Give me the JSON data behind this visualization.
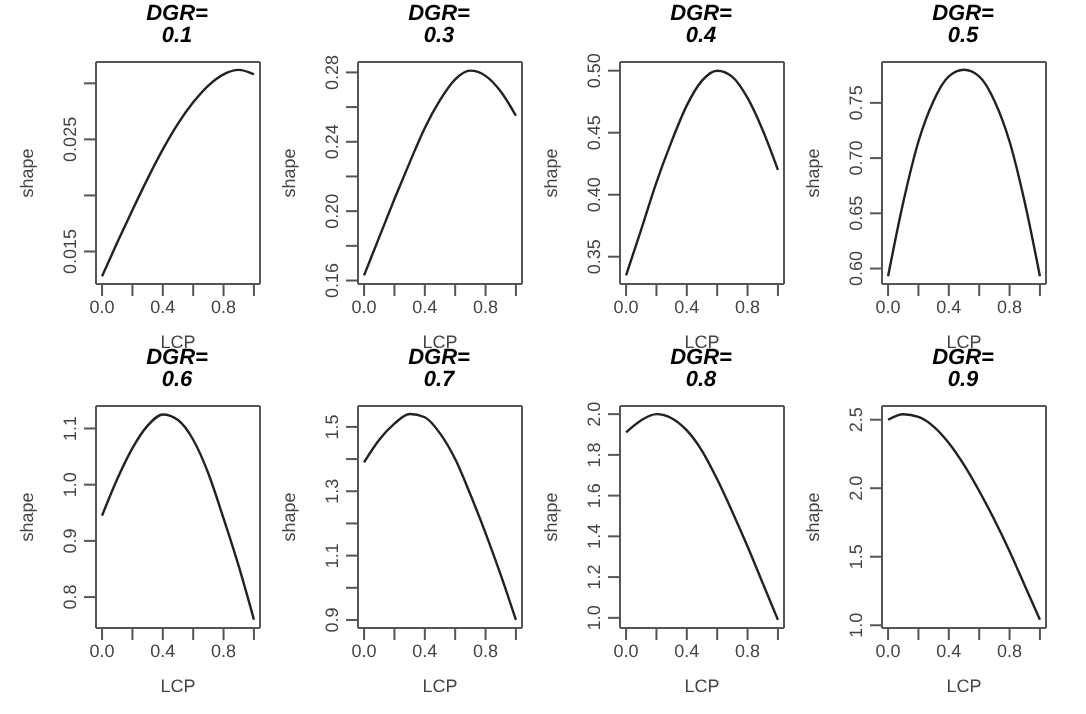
{
  "chart_data": [
    {
      "type": "line",
      "title": "DGR=\n0.1",
      "xlabel": "LCP",
      "ylabel": "shape",
      "color": "#222222",
      "x": [
        0,
        0.1,
        0.2,
        0.3,
        0.4,
        0.5,
        0.6,
        0.7,
        0.8,
        0.9,
        1.0
      ],
      "values": [
        0.0128,
        0.0158,
        0.0187,
        0.0215,
        0.0241,
        0.0264,
        0.0283,
        0.0298,
        0.0308,
        0.0312,
        0.0308
      ],
      "xlim": [
        -0.04,
        1.04
      ],
      "xticks": [
        {
          "value": 0,
          "label": "0.0"
        },
        {
          "value": 0.2,
          "label": null
        },
        {
          "value": 0.4,
          "label": "0.4"
        },
        {
          "value": 0.6,
          "label": null
        },
        {
          "value": 0.8,
          "label": "0.8"
        },
        {
          "value": 1.0,
          "label": null
        }
      ],
      "ylim": [
        0.0121,
        0.0319
      ],
      "yticks": [
        0.015,
        {
          "value": 0.02,
          "label": null
        },
        0.025,
        {
          "value": 0.03,
          "label": null
        }
      ]
    },
    {
      "type": "line",
      "title": "DGR=\n0.3",
      "xlabel": "LCP",
      "ylabel": "shape",
      "color": "#222222",
      "x": [
        0,
        0.1,
        0.2,
        0.3,
        0.4,
        0.5,
        0.6,
        0.7,
        0.8,
        0.9,
        1.0
      ],
      "values": [
        0.163,
        0.185,
        0.207,
        0.228,
        0.248,
        0.264,
        0.276,
        0.281,
        0.278,
        0.269,
        0.255
      ],
      "xlim": [
        -0.04,
        1.04
      ],
      "xticks": [
        {
          "value": 0,
          "label": "0.0"
        },
        {
          "value": 0.2,
          "label": null
        },
        {
          "value": 0.4,
          "label": "0.4"
        },
        {
          "value": 0.6,
          "label": null
        },
        {
          "value": 0.8,
          "label": "0.8"
        },
        {
          "value": 1.0,
          "label": null
        }
      ],
      "ylim": [
        0.158,
        0.286
      ],
      "yticks": [
        0.16,
        {
          "value": 0.18,
          "label": null
        },
        {
          "value": 0.2,
          "label": "0.20"
        },
        {
          "value": 0.22,
          "label": null
        },
        0.24,
        {
          "value": 0.26,
          "label": null
        },
        0.28
      ]
    },
    {
      "type": "line",
      "title": "DGR=\n0.4",
      "xlabel": "LCP",
      "ylabel": "shape",
      "color": "#222222",
      "x": [
        0,
        0.1,
        0.2,
        0.3,
        0.4,
        0.5,
        0.6,
        0.7,
        0.8,
        0.9,
        1.0
      ],
      "values": [
        0.335,
        0.372,
        0.41,
        0.443,
        0.472,
        0.492,
        0.5,
        0.495,
        0.478,
        0.452,
        0.42
      ],
      "xlim": [
        -0.04,
        1.04
      ],
      "xticks": [
        {
          "value": 0,
          "label": "0.0"
        },
        {
          "value": 0.2,
          "label": null
        },
        {
          "value": 0.4,
          "label": "0.4"
        },
        {
          "value": 0.6,
          "label": null
        },
        {
          "value": 0.8,
          "label": "0.8"
        },
        {
          "value": 1.0,
          "label": null
        }
      ],
      "ylim": [
        0.328,
        0.507
      ],
      "yticks": [
        0.35,
        {
          "value": 0.4,
          "label": "0.40"
        },
        0.45,
        {
          "value": 0.5,
          "label": "0.50"
        }
      ]
    },
    {
      "type": "line",
      "title": "DGR=\n0.5",
      "xlabel": "LCP",
      "ylabel": "shape",
      "color": "#222222",
      "x": [
        0,
        0.1,
        0.2,
        0.3,
        0.4,
        0.5,
        0.6,
        0.7,
        0.8,
        0.9,
        1.0
      ],
      "values": [
        0.593,
        0.66,
        0.715,
        0.752,
        0.774,
        0.78,
        0.774,
        0.752,
        0.715,
        0.66,
        0.593
      ],
      "xlim": [
        -0.04,
        1.04
      ],
      "xticks": [
        {
          "value": 0,
          "label": "0.0"
        },
        {
          "value": 0.2,
          "label": null
        },
        {
          "value": 0.4,
          "label": "0.4"
        },
        {
          "value": 0.6,
          "label": null
        },
        {
          "value": 0.8,
          "label": "0.8"
        },
        {
          "value": 1.0,
          "label": null
        }
      ],
      "ylim": [
        0.586,
        0.787
      ],
      "yticks": [
        {
          "value": 0.6,
          "label": "0.60"
        },
        0.65,
        {
          "value": 0.7,
          "label": "0.70"
        },
        0.75
      ]
    },
    {
      "type": "line",
      "title": "DGR=\n0.6",
      "xlabel": "LCP",
      "ylabel": "shape",
      "color": "#222222",
      "x": [
        0,
        0.1,
        0.2,
        0.3,
        0.4,
        0.5,
        0.6,
        0.7,
        0.8,
        0.9,
        1.0
      ],
      "values": [
        0.945,
        1.01,
        1.065,
        1.105,
        1.125,
        1.115,
        1.08,
        1.02,
        0.94,
        0.855,
        0.76
      ],
      "xlim": [
        -0.04,
        1.04
      ],
      "xticks": [
        {
          "value": 0,
          "label": "0.0"
        },
        {
          "value": 0.2,
          "label": null
        },
        {
          "value": 0.4,
          "label": "0.4"
        },
        {
          "value": 0.6,
          "label": null
        },
        {
          "value": 0.8,
          "label": "0.8"
        },
        {
          "value": 1.0,
          "label": null
        }
      ],
      "ylim": [
        0.745,
        1.14
      ],
      "yticks": [
        0.8,
        0.9,
        {
          "value": 1.0,
          "label": "1.0"
        },
        1.1
      ]
    },
    {
      "type": "line",
      "title": "DGR=\n0.7",
      "xlabel": "LCP",
      "ylabel": "shape",
      "color": "#222222",
      "x": [
        0,
        0.1,
        0.2,
        0.3,
        0.4,
        0.5,
        0.6,
        0.7,
        0.8,
        0.9,
        1.0
      ],
      "values": [
        1.39,
        1.46,
        1.51,
        1.54,
        1.53,
        1.48,
        1.4,
        1.29,
        1.17,
        1.04,
        0.9
      ],
      "xlim": [
        -0.04,
        1.04
      ],
      "xticks": [
        {
          "value": 0,
          "label": "0.0"
        },
        {
          "value": 0.2,
          "label": null
        },
        {
          "value": 0.4,
          "label": "0.4"
        },
        {
          "value": 0.6,
          "label": null
        },
        {
          "value": 0.8,
          "label": "0.8"
        },
        {
          "value": 1.0,
          "label": null
        }
      ],
      "ylim": [
        0.875,
        1.565
      ],
      "yticks": [
        0.9,
        {
          "value": 1.0,
          "label": null
        },
        1.1,
        {
          "value": 1.2,
          "label": null
        },
        1.3,
        {
          "value": 1.4,
          "label": null
        },
        1.5
      ]
    },
    {
      "type": "line",
      "title": "DGR=\n0.8",
      "xlabel": "LCP",
      "ylabel": "shape",
      "color": "#222222",
      "x": [
        0,
        0.1,
        0.2,
        0.3,
        0.4,
        0.5,
        0.6,
        0.7,
        0.8,
        0.9,
        1.0
      ],
      "values": [
        1.91,
        1.97,
        2.0,
        1.98,
        1.92,
        1.82,
        1.68,
        1.52,
        1.35,
        1.17,
        0.99
      ],
      "xlim": [
        -0.04,
        1.04
      ],
      "xticks": [
        {
          "value": 0,
          "label": "0.0"
        },
        {
          "value": 0.2,
          "label": null
        },
        {
          "value": 0.4,
          "label": "0.4"
        },
        {
          "value": 0.6,
          "label": null
        },
        {
          "value": 0.8,
          "label": "0.8"
        },
        {
          "value": 1.0,
          "label": null
        }
      ],
      "ylim": [
        0.95,
        2.04
      ],
      "yticks": [
        {
          "value": 1.0,
          "label": "1.0"
        },
        1.2,
        1.4,
        1.6,
        1.8,
        {
          "value": 2.0,
          "label": "2.0"
        }
      ]
    },
    {
      "type": "line",
      "title": "DGR=\n0.9",
      "xlabel": "LCP",
      "ylabel": "shape",
      "color": "#222222",
      "x": [
        0,
        0.1,
        0.2,
        0.3,
        0.4,
        0.5,
        0.6,
        0.7,
        0.8,
        0.9,
        1.0
      ],
      "values": [
        2.5,
        2.54,
        2.52,
        2.45,
        2.33,
        2.17,
        1.98,
        1.77,
        1.54,
        1.29,
        1.04
      ],
      "xlim": [
        -0.04,
        1.04
      ],
      "xticks": [
        {
          "value": 0,
          "label": "0.0"
        },
        {
          "value": 0.2,
          "label": null
        },
        {
          "value": 0.4,
          "label": "0.4"
        },
        {
          "value": 0.6,
          "label": null
        },
        {
          "value": 0.8,
          "label": "0.8"
        },
        {
          "value": 1.0,
          "label": null
        }
      ],
      "ylim": [
        0.98,
        2.6
      ],
      "yticks": [
        {
          "value": 1.0,
          "label": "1.0"
        },
        1.5,
        {
          "value": 2.0,
          "label": "2.0"
        },
        2.5
      ]
    }
  ]
}
